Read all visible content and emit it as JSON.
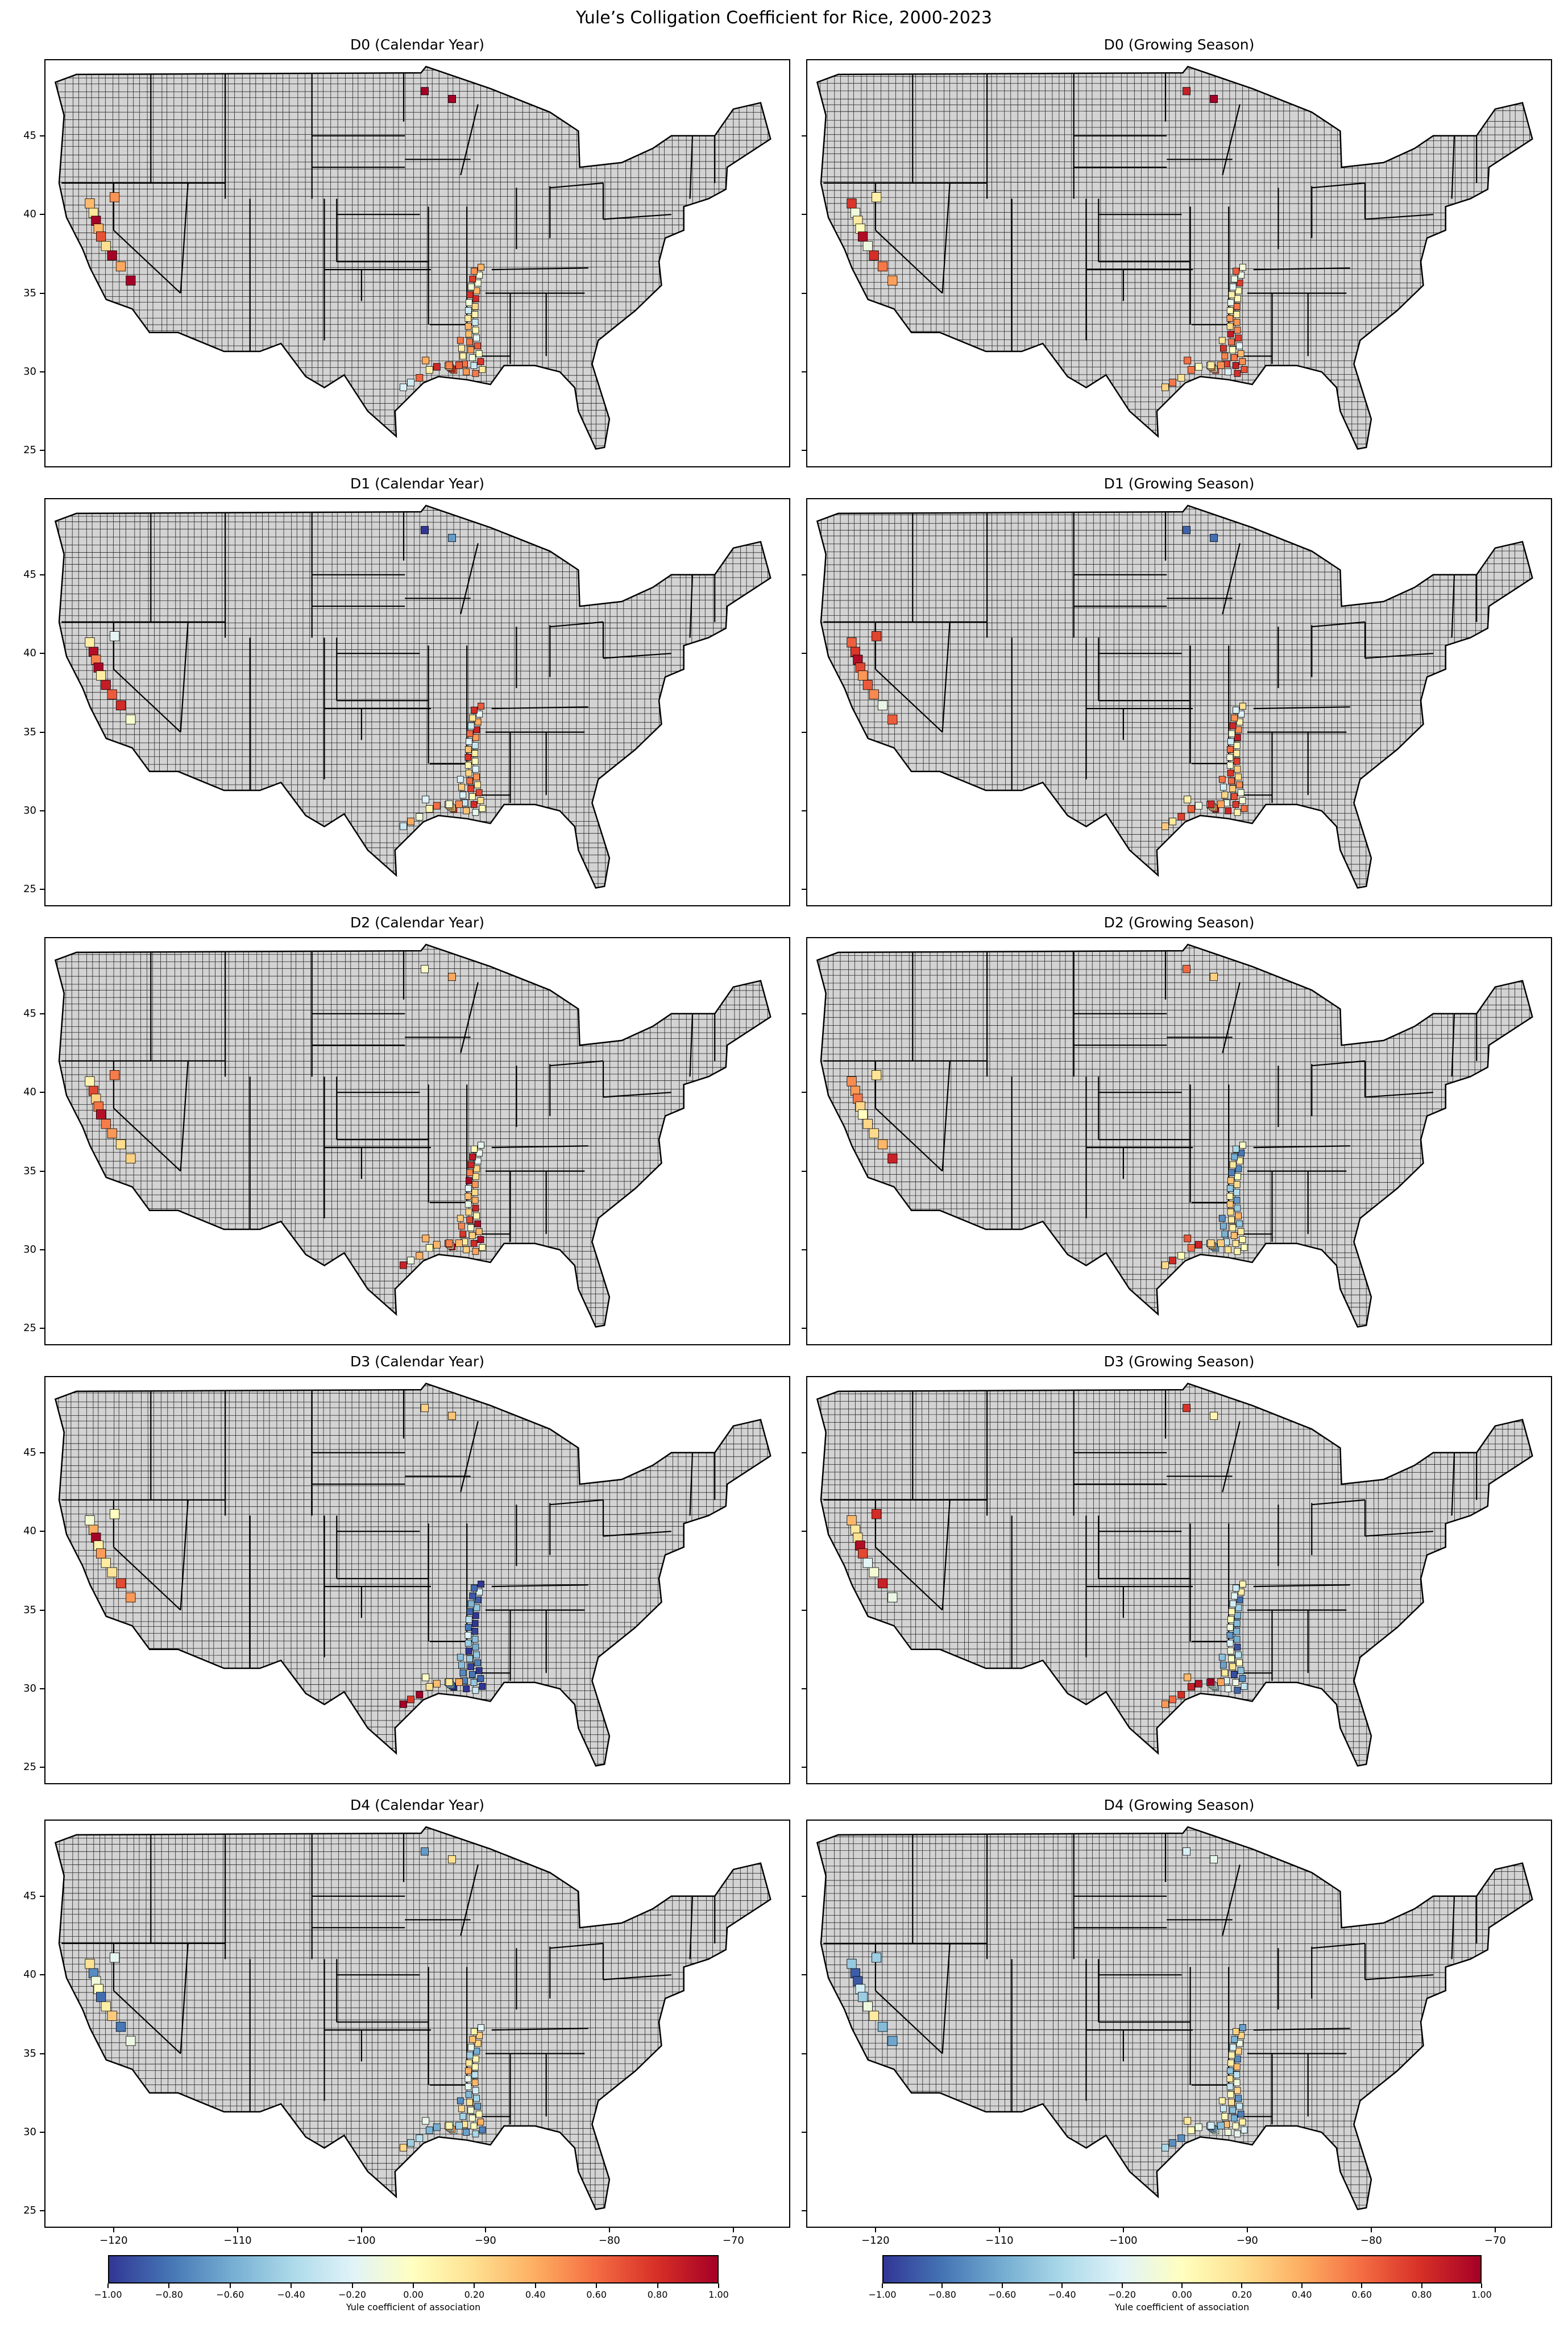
{
  "title": "Yule’s Colligation Coefficient for Rice, 2000-2023",
  "panels": [
    {
      "title": "D0 (Calendar Year)"
    },
    {
      "title": "D0 (Growing Season)"
    },
    {
      "title": "D1 (Calendar Year)"
    },
    {
      "title": "D1 (Growing Season)"
    },
    {
      "title": "D2 (Calendar Year)"
    },
    {
      "title": "D2 (Growing Season)"
    },
    {
      "title": "D3 (Calendar Year)"
    },
    {
      "title": "D3 (Growing Season)"
    },
    {
      "title": "D4 (Calendar Year)"
    },
    {
      "title": "D4 (Growing Season)"
    }
  ],
  "y_ticks": [
    "25",
    "30",
    "35",
    "40",
    "45"
  ],
  "x_ticks": [
    "−120",
    "−110",
    "−100",
    "−90",
    "−80",
    "−70"
  ],
  "colorbar": {
    "label": "Yule coefficient of association",
    "ticks": [
      "−1.00",
      "−0.80",
      "−0.60",
      "−0.40",
      "−0.20",
      "0.00",
      "0.20",
      "0.40",
      "0.60",
      "0.80",
      "1.00"
    ],
    "colormap": "RdYlBu_r",
    "min": -1.0,
    "max": 1.0
  },
  "colors": {
    "land": "#d3d3d3",
    "boundary": "#000000",
    "strong_negative": "#313695",
    "neutral": "#ffffbf",
    "strong_positive": "#a50026"
  }
}
